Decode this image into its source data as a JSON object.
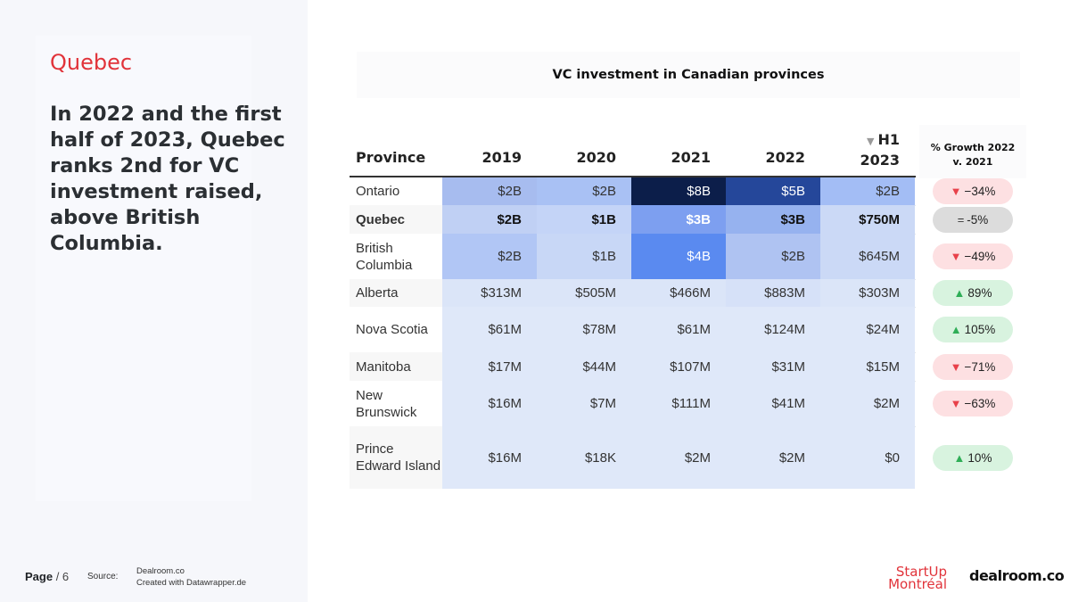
{
  "slide": {
    "section_title": "Quebec",
    "headline": "In 2022 and the first half of 2023, Quebec ranks 2nd for VC investment raised, above British Columbia.",
    "page_label": "Page",
    "page_total": " / 6",
    "source_label": "Source:",
    "source_line1": "Dealroom.co",
    "source_line2": "Created with Datawrapper.de",
    "logo_startup_line1": "StartUp",
    "logo_startup_line2": "Montréal",
    "logo_dealroom": "dealroom.co"
  },
  "chart_data": {
    "type": "table",
    "title": "VC investment in Canadian provinces",
    "columns": [
      "Province",
      "2019",
      "2020",
      "2021",
      "2022",
      "H1 2023"
    ],
    "h1_label": "H1",
    "h1_year": "2023",
    "growth_header": "% Growth 2022 v. 2021",
    "growth_header_line1": "% Growth 2022",
    "growth_header_line2": "v. 2021",
    "rows": [
      {
        "province": "Ontario",
        "values": [
          "$2B",
          "$2B",
          "$8B",
          "$5B",
          "$2B"
        ],
        "growth": "−34%",
        "dir": "down",
        "bold": false
      },
      {
        "province": "Quebec",
        "values": [
          "$2B",
          "$1B",
          "$3B",
          "$3B",
          "$750M"
        ],
        "growth": "-5%",
        "dir": "flat",
        "bold": true
      },
      {
        "province": "British Columbia",
        "values": [
          "$2B",
          "$1B",
          "$4B",
          "$2B",
          "$645M"
        ],
        "growth": "−49%",
        "dir": "down",
        "bold": false
      },
      {
        "province": "Alberta",
        "values": [
          "$313M",
          "$505M",
          "$466M",
          "$883M",
          "$303M"
        ],
        "growth": "89%",
        "dir": "up",
        "bold": false
      },
      {
        "province": "Nova Scotia",
        "values": [
          "$61M",
          "$78M",
          "$61M",
          "$124M",
          "$24M"
        ],
        "growth": "105%",
        "dir": "up",
        "bold": false
      },
      {
        "province": "Manitoba",
        "values": [
          "$17M",
          "$44M",
          "$107M",
          "$31M",
          "$15M"
        ],
        "growth": "−71%",
        "dir": "down",
        "bold": false
      },
      {
        "province": "New Brunswick",
        "values": [
          "$16M",
          "$7M",
          "$111M",
          "$41M",
          "$2M"
        ],
        "growth": "−63%",
        "dir": "down",
        "bold": false
      },
      {
        "province": "Prince Edward Island",
        "values": [
          "$16M",
          "$18K",
          "$2M",
          "$2M",
          "$0"
        ],
        "growth": "10%",
        "dir": "up",
        "bold": false
      }
    ],
    "cell_colors": [
      [
        "#a7bcef",
        "#a9c1f4",
        "#0c1e4a",
        "#25479a",
        "#a3bdf5"
      ],
      [
        "#c0d0f4",
        "#c4d4f7",
        "#7d9ff0",
        "#96b2ef",
        "#cbd9f6"
      ],
      [
        "#b1c6f5",
        "#c8d7f6",
        "#5a8af0",
        "#afc3f2",
        "#cbd9f6"
      ],
      [
        "#dbe5f8",
        "#dbe5f8",
        "#dbe5f8",
        "#d6e1f8",
        "#dbe5f8"
      ],
      [
        "#dfe8f9",
        "#dfe8f9",
        "#dfe8f9",
        "#dfe8f9",
        "#dfe8f9"
      ],
      [
        "#dfe8f9",
        "#dfe8f9",
        "#dfe8f9",
        "#dfe8f9",
        "#dfe8f9"
      ],
      [
        "#dfe8f9",
        "#dfe8f9",
        "#dfe8f9",
        "#dfe8f9",
        "#dfe8f9"
      ],
      [
        "#dfe8f9",
        "#dfe8f9",
        "#dfe8f9",
        "#dfe8f9",
        "#dfe8f9"
      ]
    ],
    "growth_colors": {
      "down": "#fde0e2",
      "flat": "#dcdcdc",
      "up": "#d8f3df"
    },
    "arrow_colors": {
      "down": "#e8414a",
      "flat": "#333333",
      "up": "#2fae57"
    },
    "dark_text_cells": [
      "#0c1e4a",
      "#25479a",
      "#5a8af0",
      "#7d9ff0"
    ]
  }
}
